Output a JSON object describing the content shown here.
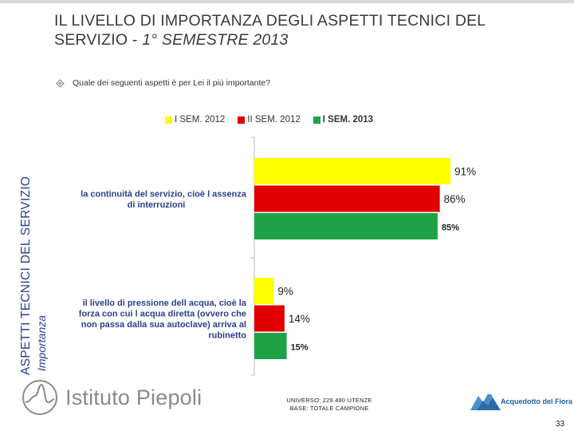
{
  "title": {
    "line1": "IL LIVELLO DI IMPORTANZA DEGLI ASPETTI TECNICI DEL",
    "line2_prefix": "SERVIZIO - ",
    "line2_italic": "1° SEMESTRE 2013"
  },
  "question": "Quale dei seguenti aspetti è per Lei il più importante?",
  "side_label": {
    "main": "ASPETTI TECNICI DEL SERVIZIO",
    "sub": "Importanza"
  },
  "colors": {
    "yellow": "#ffff00",
    "red": "#e00000",
    "green": "#1fa246",
    "brand_blue": "#2b3f8f"
  },
  "chart_data": {
    "type": "bar",
    "orientation": "horizontal",
    "title": "",
    "xlabel": "",
    "ylabel": "",
    "xlim": [
      0,
      100
    ],
    "categories": [
      "la continuità del servizio, cioè l assenza di interruzioni",
      "il livello di pressione dell acqua, cioè la forza con cui l acqua diretta (ovvero che non passa dalla sua autoclave) arriva al rubinetto"
    ],
    "category_lines": [
      [
        "la continuità del servizio, cioè l assenza",
        "di interruzioni"
      ],
      [
        "il livello di pressione dell acqua, cioè la",
        "forza con cui l acqua diretta (ovvero che",
        "non passa dalla sua autoclave) arriva al",
        "rubinetto"
      ]
    ],
    "series": [
      {
        "name": "I SEM. 2012",
        "color": "#ffff00",
        "values": [
          91,
          9
        ],
        "labels": [
          "91%",
          "9%"
        ]
      },
      {
        "name": "II SEM. 2012",
        "color": "#e00000",
        "values": [
          86,
          14
        ],
        "labels": [
          "86%",
          "14%"
        ]
      },
      {
        "name": "I SEM. 2013",
        "color": "#1fa246",
        "values": [
          85,
          15
        ],
        "labels": [
          "85%",
          "15%"
        ]
      }
    ]
  },
  "footnote": {
    "line1": "UNIVERSO: 229.490 UTENZE",
    "line2": "BASE: TOTALE CAMPIONE"
  },
  "logo_left": "Istituto Piepoli",
  "logo_right": "Acquedotto del Fiora",
  "page_number": "33"
}
